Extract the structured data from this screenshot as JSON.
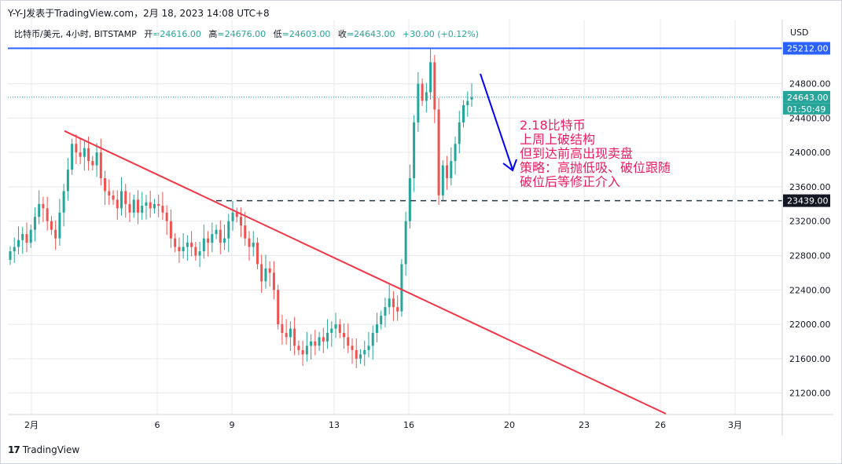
{
  "header": {
    "caption": "Y-Y-J发表于TradingView.com，2月 18, 2023 14:08 UTC+8"
  },
  "legend": {
    "symbol": "比特币/美元, 4小时, BITSTAMP",
    "open_label": "开",
    "open": "=24616.00",
    "high_label": "高",
    "high": "=24676.00",
    "low_label": "低",
    "low": "=24603.00",
    "close_label": "收",
    "close": "=24643.00",
    "change": "+30.00 (+0.12%)"
  },
  "footer": {
    "brand": "TradingView",
    "logo": "tradingview-logo-icon"
  },
  "colors": {
    "up": "#26a69a",
    "down": "#ef5350",
    "trendline": "#f23645",
    "resistance": "#2962ff",
    "support": "#1e3a4a",
    "annotation": "#e91e63",
    "arrow": "#0000ff"
  },
  "chart_data": {
    "type": "candlestick",
    "interval": "4H",
    "currency": "USD",
    "ylim": [
      20950,
      25500
    ],
    "y_ticks": [
      21200,
      21600,
      22000,
      22400,
      22800,
      23200,
      23600,
      24000,
      24400,
      24800
    ],
    "x_labels": [
      "2月",
      "6",
      "9",
      "13",
      "16",
      "20",
      "23",
      "26",
      "3月"
    ],
    "price_labels": [
      {
        "text": "25212.00",
        "value": 25212,
        "style": "resistance"
      },
      {
        "text": "24643.00",
        "value": 24643,
        "style": "current"
      },
      {
        "text": "01:50:49",
        "value": 24643,
        "style": "countdown"
      },
      {
        "text": "23439.00",
        "value": 23439,
        "style": "support"
      }
    ],
    "annotation": [
      "2.18比特币",
      "上周上破结构",
      "但到达前高出现卖盘",
      "策略：高抛低吸、破位跟随",
      "破位后等修正介入"
    ],
    "annotation_lines": 5,
    "candles_close": [
      22850,
      22900,
      22980,
      23050,
      22950,
      23100,
      23250,
      23400,
      23350,
      23200,
      23100,
      23000,
      23300,
      23550,
      23800,
      24100,
      24000,
      23950,
      24050,
      23900,
      23850,
      24000,
      23700,
      23550,
      23500,
      23450,
      23350,
      23550,
      23400,
      23300,
      23450,
      23300,
      23380,
      23420,
      23350,
      23400,
      23380,
      23300,
      23200,
      23000,
      22900,
      22850,
      22900,
      22950,
      22900,
      22800,
      22850,
      23000,
      22950,
      23050,
      23100,
      22950,
      23000,
      23200,
      23300,
      23250,
      23150,
      23000,
      22900,
      22950,
      22700,
      22500,
      22650,
      22600,
      22400,
      22000,
      21900,
      21850,
      21950,
      21750,
      21700,
      21650,
      21750,
      21800,
      21750,
      21850,
      21800,
      21900,
      21950,
      22000,
      21900,
      21850,
      21750,
      21700,
      21600,
      21650,
      21700,
      21750,
      21900,
      22000,
      22100,
      22200,
      22300,
      22200,
      22150,
      22700,
      23200,
      23700,
      24350,
      24800,
      24600,
      24700,
      25050,
      24500,
      23500,
      23850,
      23700,
      23900,
      24100,
      24350,
      24550,
      24600,
      24643
    ],
    "candles_open": [
      22750,
      22850,
      22900,
      22980,
      23050,
      22950,
      23100,
      23250,
      23400,
      23350,
      23200,
      23100,
      23000,
      23300,
      23550,
      23800,
      24100,
      24000,
      23950,
      24050,
      23900,
      23850,
      24000,
      23700,
      23550,
      23500,
      23450,
      23350,
      23550,
      23400,
      23300,
      23450,
      23300,
      23380,
      23420,
      23350,
      23400,
      23380,
      23300,
      23200,
      23000,
      22900,
      22850,
      22900,
      22950,
      22900,
      22800,
      22850,
      23000,
      22950,
      23050,
      23100,
      22950,
      23000,
      23200,
      23300,
      23250,
      23150,
      23000,
      22900,
      22950,
      22700,
      22500,
      22650,
      22600,
      22400,
      22000,
      21900,
      21850,
      21950,
      21750,
      21700,
      21650,
      21750,
      21800,
      21750,
      21850,
      21800,
      21900,
      21950,
      22000,
      21900,
      21850,
      21750,
      21700,
      21600,
      21650,
      21700,
      21750,
      21900,
      22000,
      22100,
      22200,
      22300,
      22200,
      22150,
      22700,
      23200,
      23700,
      24350,
      24800,
      24600,
      24700,
      25050,
      24500,
      23500,
      23850,
      23700,
      23900,
      24100,
      24350,
      24550,
      24616
    ]
  }
}
